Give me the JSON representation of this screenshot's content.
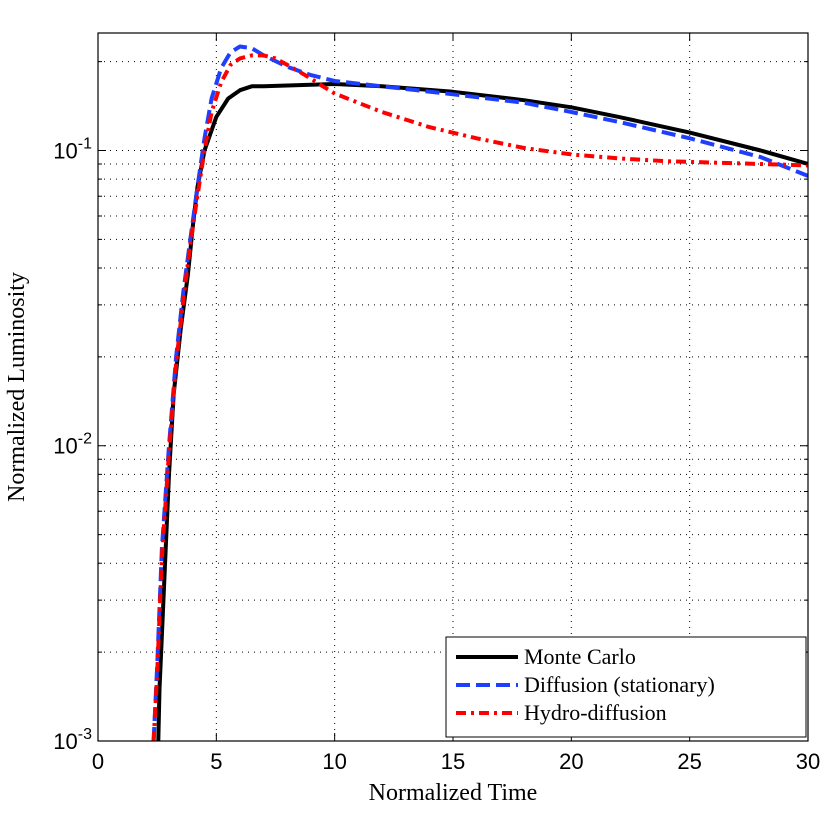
{
  "chart_data": {
    "type": "line",
    "title": "",
    "xlabel": "Normalized Time",
    "ylabel": "Normalized Luminosity",
    "xlim": [
      0,
      30
    ],
    "ylim": [
      0.001,
      0.25
    ],
    "yscale": "log",
    "grid": true,
    "legend_position": "bottom-right",
    "x_ticks": [
      0,
      5,
      10,
      15,
      20,
      25,
      30
    ],
    "x_tick_labels": [
      "0",
      "5",
      "10",
      "15",
      "20",
      "25",
      "30"
    ],
    "y_ticks": [
      0.001,
      0.01,
      0.1
    ],
    "y_tick_labels": [
      {
        "base": "10",
        "exp": "-3"
      },
      {
        "base": "10",
        "exp": "-2"
      },
      {
        "base": "10",
        "exp": "-1"
      }
    ],
    "series": [
      {
        "name": "Monte Carlo",
        "color": "#000000",
        "style": "solid",
        "x": [
          2.55,
          2.6,
          2.8,
          3.0,
          3.2,
          3.5,
          3.8,
          4.0,
          4.2,
          4.5,
          5.0,
          5.5,
          6.0,
          6.5,
          7.0,
          8.0,
          10.0,
          12.0,
          15.0,
          18.0,
          20.0,
          22.0,
          25.0,
          28.0,
          30.0
        ],
        "y": [
          0.001,
          0.0015,
          0.0035,
          0.008,
          0.015,
          0.025,
          0.038,
          0.055,
          0.075,
          0.1,
          0.13,
          0.15,
          0.16,
          0.165,
          0.165,
          0.166,
          0.168,
          0.165,
          0.158,
          0.148,
          0.14,
          0.13,
          0.115,
          0.1,
          0.09
        ]
      },
      {
        "name": "Diffusion (stationary)",
        "color": "#1f3fff",
        "style": "dashed",
        "x": [
          2.35,
          2.5,
          2.7,
          3.0,
          3.3,
          3.6,
          3.9,
          4.2,
          4.5,
          4.8,
          5.2,
          5.6,
          6.0,
          6.5,
          7.0,
          8.0,
          9.0,
          10.0,
          12.0,
          15.0,
          18.0,
          20.0,
          22.0,
          25.0,
          28.0,
          30.0
        ],
        "y": [
          0.001,
          0.0018,
          0.0045,
          0.01,
          0.02,
          0.033,
          0.05,
          0.075,
          0.11,
          0.15,
          0.19,
          0.215,
          0.225,
          0.222,
          0.21,
          0.192,
          0.18,
          0.172,
          0.165,
          0.155,
          0.145,
          0.135,
          0.125,
          0.11,
          0.095,
          0.082
        ]
      },
      {
        "name": "Hydro-diffusion",
        "color": "#ff0000",
        "style": "dash-dot",
        "x": [
          2.35,
          2.5,
          2.7,
          3.0,
          3.3,
          3.6,
          3.9,
          4.2,
          4.5,
          4.8,
          5.2,
          5.6,
          6.0,
          6.5,
          7.0,
          7.5,
          8.0,
          8.5,
          9.0,
          9.5,
          10.0,
          11.0,
          12.0,
          14.0,
          16.0,
          18.0,
          20.0,
          22.0,
          24.0,
          26.0,
          28.0,
          30.0
        ],
        "y": [
          0.001,
          0.0017,
          0.0042,
          0.0095,
          0.019,
          0.031,
          0.048,
          0.07,
          0.1,
          0.135,
          0.17,
          0.195,
          0.205,
          0.21,
          0.21,
          0.205,
          0.195,
          0.185,
          0.175,
          0.165,
          0.156,
          0.145,
          0.135,
          0.12,
          0.11,
          0.102,
          0.097,
          0.094,
          0.092,
          0.091,
          0.09,
          0.089
        ]
      }
    ]
  }
}
